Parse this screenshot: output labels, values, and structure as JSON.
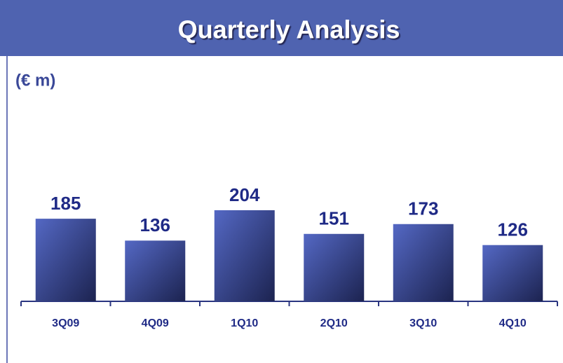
{
  "chart_data": {
    "type": "bar",
    "title": "Quarterly Analysis",
    "unit_label": "(€ m)",
    "categories": [
      "3Q09",
      "4Q09",
      "1Q10",
      "2Q10",
      "3Q10",
      "4Q10"
    ],
    "values": [
      185,
      136,
      204,
      151,
      173,
      126
    ],
    "color": "#4a5cb8"
  }
}
